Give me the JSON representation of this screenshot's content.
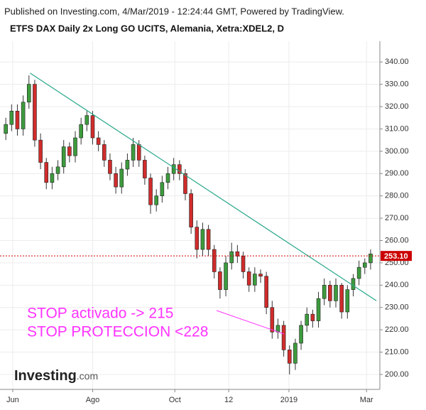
{
  "header": "Published on Investing.com, 4/Mar/2019 - 12:24:44 GMT, Powered by TradingView.",
  "logo": {
    "name": "Investing",
    "suffix": ".com"
  },
  "chart_data": {
    "type": "candlestick",
    "title": "ETFS DAX Daily 2x Long GO UCITS, Alemania, Xetra:XDEL2, D",
    "annotations": [
      "STOP activado -> 215",
      "STOP PROTECCION <228"
    ],
    "open": [
      308,
      312,
      318,
      310,
      322,
      330,
      305,
      295,
      286,
      290,
      293,
      302,
      298,
      306,
      312,
      316,
      306,
      303,
      296,
      290,
      284,
      292,
      296,
      303,
      296,
      288,
      276,
      280,
      286,
      290,
      294,
      290,
      281,
      266,
      256,
      265,
      256,
      246,
      238,
      250,
      255,
      253,
      246,
      240,
      245,
      244,
      230,
      219,
      222,
      211,
      205,
      214,
      222,
      227,
      224,
      234,
      240,
      233,
      240,
      228,
      238,
      243,
      248,
      250
    ],
    "high": [
      315,
      321,
      321,
      325,
      334,
      332,
      308,
      297,
      293,
      296,
      305,
      304,
      309,
      315,
      318,
      318,
      309,
      305,
      299,
      293,
      295,
      299,
      306,
      305,
      298,
      290,
      283,
      289,
      293,
      297,
      296,
      292,
      283,
      269,
      268,
      267,
      258,
      248,
      253,
      259,
      258,
      255,
      248,
      248,
      247,
      246,
      233,
      225,
      224,
      213,
      216,
      224,
      230,
      229,
      237,
      243,
      242,
      243,
      241,
      240,
      245,
      251,
      252,
      256
    ],
    "low": [
      305,
      309,
      307,
      307,
      319,
      302,
      292,
      283,
      283,
      287,
      290,
      295,
      295,
      303,
      309,
      303,
      300,
      293,
      287,
      281,
      281,
      289,
      293,
      293,
      285,
      272,
      273,
      277,
      283,
      287,
      287,
      278,
      263,
      252,
      253,
      253,
      243,
      234,
      235,
      247,
      250,
      243,
      237,
      237,
      241,
      227,
      216,
      216,
      208,
      200,
      202,
      211,
      219,
      221,
      221,
      231,
      230,
      230,
      225,
      225,
      235,
      240,
      245,
      247
    ],
    "close": [
      312,
      318,
      310,
      322,
      330,
      305,
      295,
      286,
      290,
      293,
      302,
      298,
      306,
      312,
      316,
      306,
      303,
      296,
      290,
      284,
      292,
      296,
      303,
      296,
      288,
      276,
      280,
      286,
      290,
      294,
      290,
      281,
      266,
      256,
      265,
      256,
      246,
      238,
      250,
      255,
      253,
      246,
      240,
      245,
      244,
      230,
      219,
      222,
      211,
      205,
      214,
      222,
      227,
      224,
      234,
      240,
      233,
      240,
      228,
      238,
      243,
      248,
      250,
      254
    ],
    "up_color": "#3d9b3d",
    "down_color": "#d02c2c",
    "wick_color": "#333333",
    "trend_line": {
      "x": [
        4.2,
        64
      ],
      "y": [
        335,
        233
      ],
      "color": "#2aa88a"
    },
    "last_price": 253.1,
    "last_price_label": "253.10",
    "last_price_color": "#cc0000",
    "xlim": [
      -1,
      64.6
    ],
    "xticks": [
      {
        "value": 1.2,
        "label": "Jun"
      },
      {
        "value": 15,
        "label": "Ago"
      },
      {
        "value": 29.2,
        "label": "Oct"
      },
      {
        "value": 38.5,
        "label": "12"
      },
      {
        "value": 48.9,
        "label": "2019"
      },
      {
        "value": 62.3,
        "label": "Mar"
      }
    ],
    "ylim": [
      193.3,
      349.3
    ],
    "yticks": [
      {
        "value": 200,
        "label": "200.00"
      },
      {
        "value": 210,
        "label": "210.00"
      },
      {
        "value": 220,
        "label": "220.00"
      },
      {
        "value": 230,
        "label": "230.00"
      },
      {
        "value": 240,
        "label": "240.00"
      },
      {
        "value": 250,
        "label": "250.00"
      },
      {
        "value": 260,
        "label": "260.00"
      },
      {
        "value": 270,
        "label": "270.00"
      },
      {
        "value": 280,
        "label": "280.00"
      },
      {
        "value": 290,
        "label": "290.00"
      },
      {
        "value": 300,
        "label": "300.00"
      },
      {
        "value": 310,
        "label": "310.00"
      },
      {
        "value": 320,
        "label": "320.00"
      },
      {
        "value": 330,
        "label": "330.00"
      },
      {
        "value": 340,
        "label": "340.00"
      }
    ],
    "grid": true
  }
}
